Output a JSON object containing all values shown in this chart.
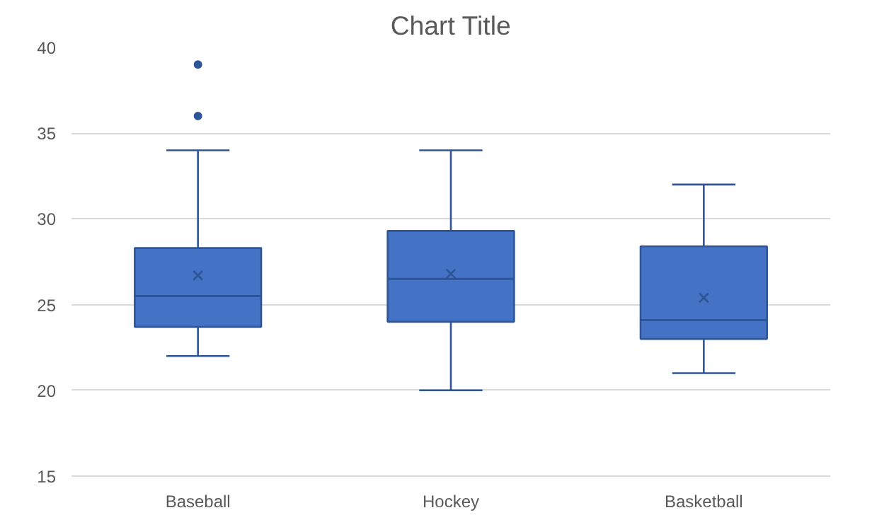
{
  "chart_data": {
    "type": "box",
    "title": "Chart Title",
    "categories": [
      "Baseball",
      "Hockey",
      "Basketball"
    ],
    "color": "#4472c4",
    "boxes": [
      {
        "low": 22,
        "q1": 23.7,
        "median": 25.5,
        "q3": 28.3,
        "high": 34,
        "mean": 26.7,
        "outliers": [
          36,
          39
        ]
      },
      {
        "low": 20,
        "q1": 24,
        "median": 26.5,
        "q3": 29.3,
        "high": 34,
        "mean": 26.8
      },
      {
        "low": 21,
        "q1": 23,
        "median": 24.1,
        "q3": 28.4,
        "high": 32,
        "mean": 25.4
      }
    ],
    "ylim": [
      15,
      40
    ],
    "yticks": [
      15,
      20,
      25,
      30,
      35,
      40
    ],
    "grid": "y"
  }
}
